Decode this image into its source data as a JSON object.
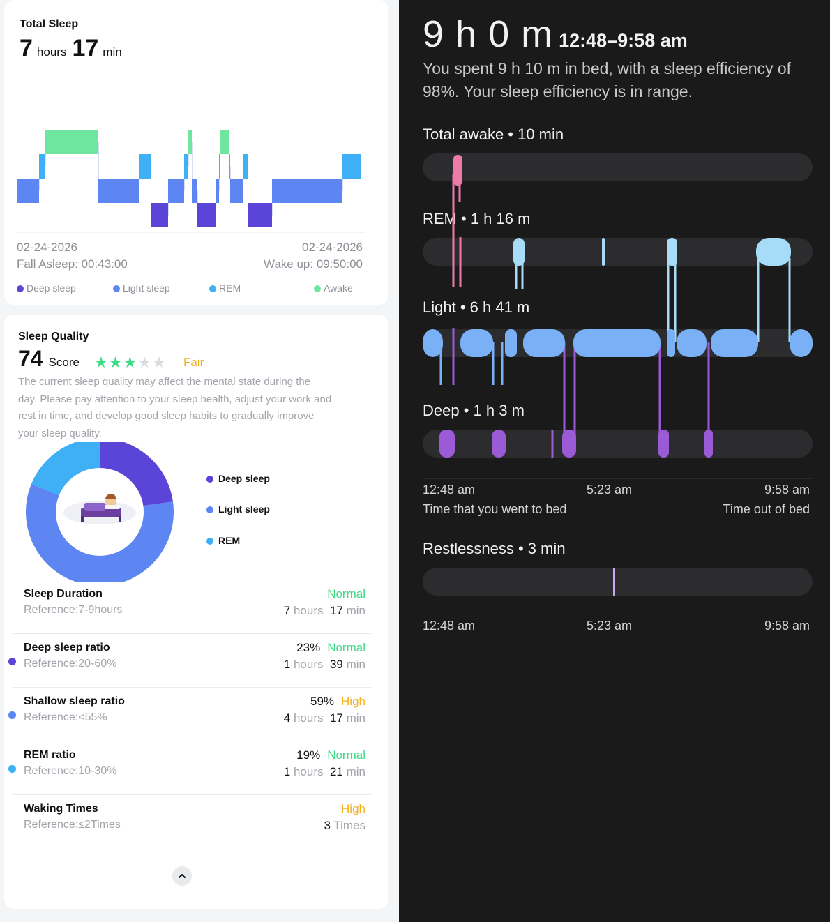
{
  "colors": {
    "deep": "#5b45d8",
    "light": "#5d86f2",
    "rem": "#3fb0f5",
    "awake": "#6ee6a0",
    "status_normal": "#3ddb86",
    "status_high": "#f5b11c",
    "dark_awake": "#ef7aa8",
    "dark_rem": "#a6dcf8",
    "dark_light": "#7ab0f5",
    "dark_deep": "#9b5ad6"
  },
  "total_sleep": {
    "title": "Total Sleep",
    "hours": "7",
    "hours_unit": "hours",
    "minutes": "17",
    "minutes_unit": "min"
  },
  "hypnogram": {
    "start_date": "02-24-2026",
    "end_date": "02-24-2026",
    "fall_asleep": "Fall Asleep: 00:43:00",
    "wake_up": "Wake up: 09:50:00"
  },
  "legend": {
    "deep": "Deep sleep",
    "light": "Light sleep",
    "rem": "REM",
    "awake": "Awake"
  },
  "quality": {
    "title": "Sleep Quality",
    "score": "74",
    "score_label": "Score",
    "stars_filled": 3,
    "stars_total": 5,
    "rating": "Fair",
    "description": "The current sleep quality may affect the mental state during the day. Please pay attention to your sleep health, adjust your work and rest in time, and develop good sleep habits to gradually improve your sleep quality."
  },
  "composition": {
    "deep_pct": 23,
    "light_pct": 59,
    "rem_pct": 19,
    "deep_label": "Deep sleep",
    "light_label": "Light sleep",
    "rem_label": "REM"
  },
  "metrics": [
    {
      "name": "Sleep Duration",
      "reference": "Reference:7-9hours",
      "percent": "",
      "status": "Normal",
      "value1": "7",
      "unit1": "hours",
      "value2": "17",
      "unit2": "min"
    },
    {
      "name": "Deep sleep ratio",
      "reference": "Reference:20-60%",
      "percent": "23%",
      "status": "Normal",
      "value1": "1",
      "unit1": "hours",
      "value2": "39",
      "unit2": "min"
    },
    {
      "name": "Shallow sleep ratio",
      "reference": "Reference:<55%",
      "percent": "59%",
      "status": "High",
      "value1": "4",
      "unit1": "hours",
      "value2": "17",
      "unit2": "min"
    },
    {
      "name": "REM ratio",
      "reference": "Reference:10-30%",
      "percent": "19%",
      "status": "Normal",
      "value1": "1",
      "unit1": "hours",
      "value2": "21",
      "unit2": "min"
    },
    {
      "name": "Waking Times",
      "reference": "Reference:≤2Times",
      "percent": "",
      "status": "High",
      "value1": "3",
      "unit1": "Times",
      "value2": "",
      "unit2": ""
    }
  ],
  "collapse_icon": "chevron-up-icon",
  "right": {
    "duration": "9 h 0 m",
    "range": "12:48–9:58 am",
    "summary": "You spent 9 h 10 m in bed, with a sleep efficiency of 98%. Your sleep efficiency is in range.",
    "awake_label": "Total awake • 10 min",
    "rem_label": "REM • 1 h 16 m",
    "light_label": "Light • 6 h 41 m",
    "deep_label": "Deep • 1 h 3 m",
    "time_start": "12:48 am",
    "time_mid": "5:23 am",
    "time_end": "9:58 am",
    "bed_label": "Time that you went to bed",
    "out_label": "Time out of bed",
    "restless_label": "Restlessness • 3 min",
    "r_time_start": "12:48 am",
    "r_time_mid": "5:23 am",
    "r_time_end": "9:58 am"
  }
}
